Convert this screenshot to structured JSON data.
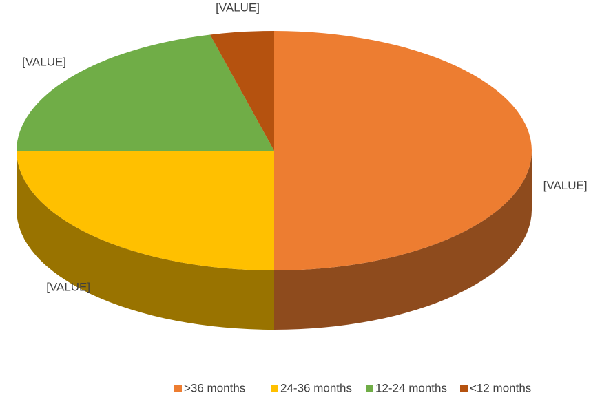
{
  "chart_data": {
    "type": "pie",
    "categories": [
      ">36 months",
      "24-36 months",
      "12-24 months",
      "<12 months"
    ],
    "values": [
      50,
      25,
      21,
      4
    ],
    "value_labels": [
      "[VALUE]",
      "[VALUE]",
      "[VALUE]",
      "[VALUE]"
    ],
    "colors": [
      "#ED7D31",
      "#FFC000",
      "#70AD47",
      "#B5520F"
    ],
    "legend": "bottom"
  }
}
